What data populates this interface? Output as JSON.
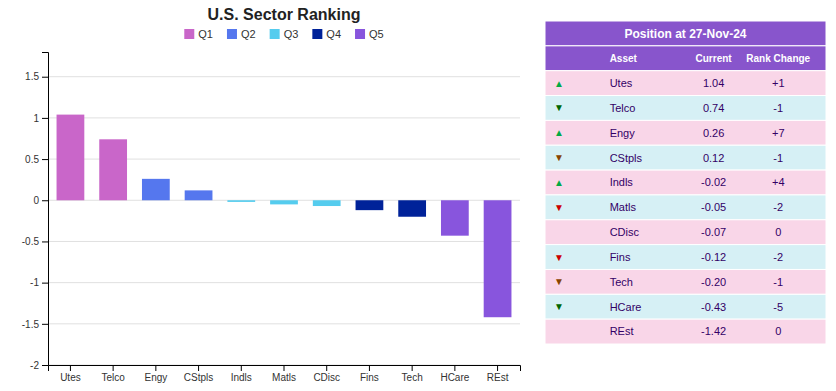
{
  "chart_data": [
    {
      "type": "bar",
      "title": "U.S. Sector Ranking",
      "categories": [
        "Utes",
        "Telco",
        "Engy",
        "CStpls",
        "Indls",
        "Matls",
        "CDisc",
        "Fins",
        "Tech",
        "HCare",
        "REst"
      ],
      "series": [
        {
          "name": "Q1",
          "color": "#c966c9",
          "values": [
            1.04,
            0.74,
            null,
            null,
            null,
            null,
            null,
            null,
            null,
            null,
            null
          ]
        },
        {
          "name": "Q2",
          "color": "#5577ee",
          "values": [
            null,
            null,
            0.26,
            0.12,
            null,
            null,
            null,
            null,
            null,
            null,
            null
          ]
        },
        {
          "name": "Q3",
          "color": "#55ccee",
          "values": [
            null,
            null,
            null,
            null,
            -0.02,
            -0.05,
            -0.07,
            null,
            null,
            null,
            null
          ]
        },
        {
          "name": "Q4",
          "color": "#002299",
          "values": [
            null,
            null,
            null,
            null,
            null,
            null,
            null,
            -0.12,
            -0.2,
            null,
            null
          ]
        },
        {
          "name": "Q5",
          "color": "#8855dd",
          "values": [
            null,
            null,
            null,
            null,
            null,
            null,
            null,
            null,
            null,
            -0.43,
            -1.42
          ]
        }
      ],
      "stacked": true,
      "ylim": [
        -2,
        1.8
      ],
      "yticks": [
        -2,
        -1.5,
        -1,
        -0.5,
        0,
        0.5,
        1,
        1.5
      ],
      "grid": true,
      "legend": "top"
    },
    {
      "type": "table",
      "title": "Position at 27-Nov-24",
      "columns": [
        null,
        "Asset",
        "Current",
        "Rank Change"
      ],
      "rows": [
        [
          "▲",
          "Utes",
          "1.04",
          "+1"
        ],
        [
          "▼",
          "Telco",
          "0.74",
          "-1"
        ],
        [
          "▲",
          "Engy",
          "0.26",
          "+7"
        ],
        [
          "▼",
          "CStpls",
          "0.12",
          "-1"
        ],
        [
          "▲",
          "Indls",
          "-0.02",
          "+4"
        ],
        [
          "▼",
          "Matls",
          "-0.05",
          "-2"
        ],
        [
          null,
          "CDisc",
          "-0.07",
          "0"
        ],
        [
          "▼",
          "Fins",
          "-0.12",
          "-2"
        ],
        [
          "▼",
          "Tech",
          "-0.20",
          "-1"
        ],
        [
          "▼",
          "HCare",
          "-0.43",
          "-5"
        ],
        [
          null,
          "REst",
          "-1.42",
          "0"
        ]
      ],
      "colors": [
        "#00aa44",
        "#006600",
        "#00aa44",
        "#884400",
        "#00aa44",
        "#cc0000",
        null,
        "#cc0000",
        "#884400",
        "#006600",
        null
      ]
    }
  ]
}
